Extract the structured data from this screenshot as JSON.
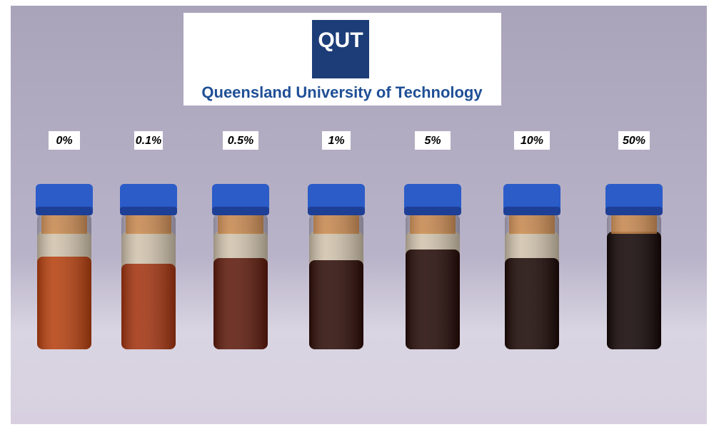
{
  "logo": {
    "mark": "QUT",
    "name": "Queensland University of Technology"
  },
  "vials": {
    "labels": [
      "0%",
      "0.1%",
      "0.5%",
      "1%",
      "5%",
      "10%",
      "50%"
    ]
  }
}
